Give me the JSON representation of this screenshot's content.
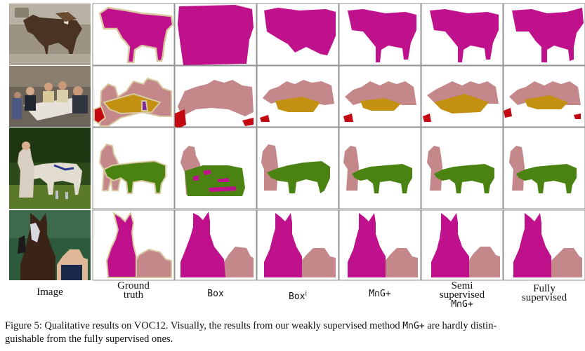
{
  "columns": [
    {
      "lines": [
        "Image"
      ],
      "mono": false
    },
    {
      "lines": [
        "Ground",
        "truth"
      ],
      "mono": false
    },
    {
      "lines": [
        "Box"
      ],
      "mono": true
    },
    {
      "lines": [
        "Boxi"
      ],
      "mono": true
    },
    {
      "lines": [
        "M∩G+"
      ],
      "mono": true
    },
    {
      "lines": [
        "Semi",
        "supervised",
        "M∩G+"
      ],
      "mono": false
    },
    {
      "lines": [
        "Fully",
        "supervised"
      ],
      "mono": false
    }
  ],
  "label_superscript": "i",
  "caption": {
    "line1_a": "Figure 5: Qualitative results on VOC12. Visually, the results from our weakly supervised method ",
    "method": "M∩G+",
    "line1_b": " are hardly distin-",
    "line2": "guishable from the fully supervised ones."
  },
  "colors": {
    "horse": "#c0118c",
    "person": "#c4878a",
    "table": "#c49012",
    "cow": "#4a8312",
    "chair": "#c40812",
    "bottle": "#7a2c9c",
    "contour": "#d8c8a0"
  },
  "rows": [
    "horse",
    "people-at-table",
    "person-with-cow",
    "horse-with-rider"
  ]
}
